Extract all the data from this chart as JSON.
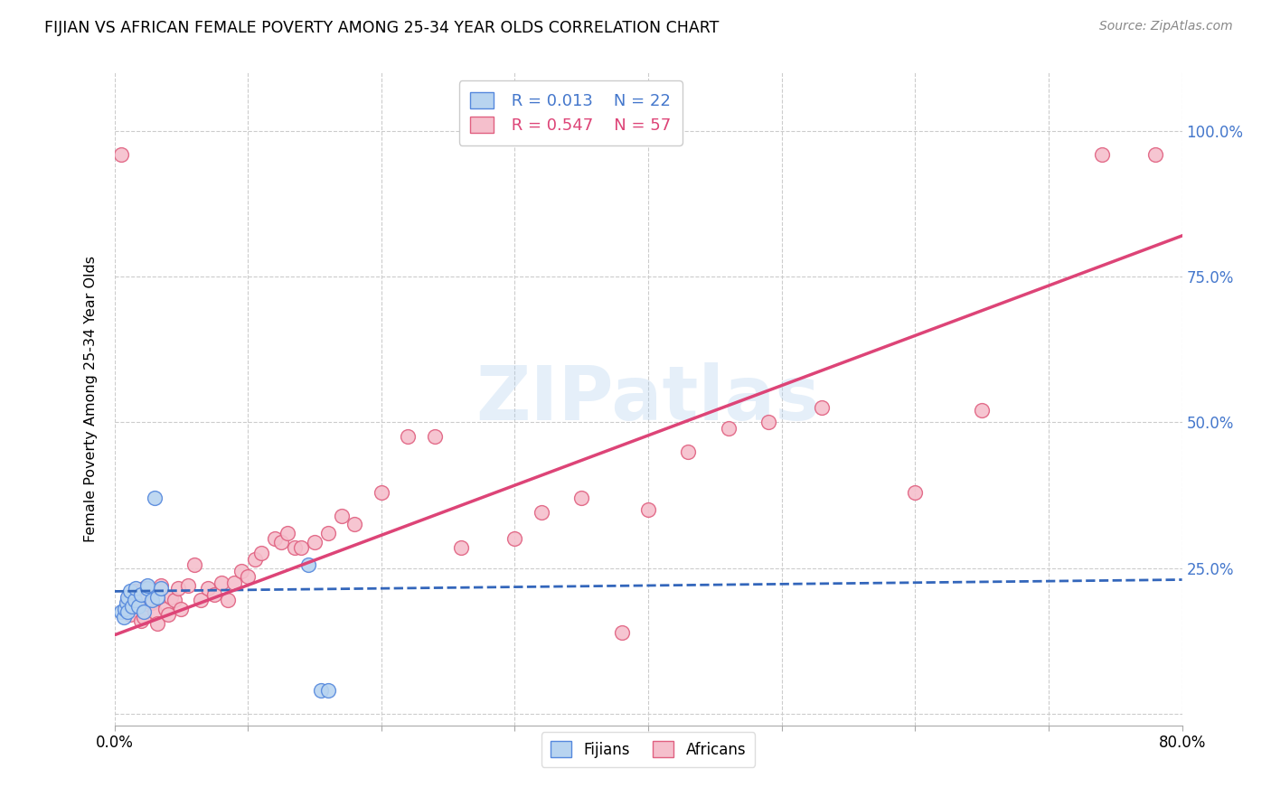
{
  "title": "FIJIAN VS AFRICAN FEMALE POVERTY AMONG 25-34 YEAR OLDS CORRELATION CHART",
  "source": "Source: ZipAtlas.com",
  "ylabel": "Female Poverty Among 25-34 Year Olds",
  "xlim": [
    0.0,
    0.8
  ],
  "ylim": [
    -0.02,
    1.1
  ],
  "xticks": [
    0.0,
    0.1,
    0.2,
    0.3,
    0.4,
    0.5,
    0.6,
    0.7,
    0.8
  ],
  "xticklabels": [
    "0.0%",
    "",
    "",
    "",
    "",
    "",
    "",
    "",
    "80.0%"
  ],
  "ytick_positions": [
    0.0,
    0.25,
    0.5,
    0.75,
    1.0
  ],
  "yticklabels_right": [
    "",
    "25.0%",
    "50.0%",
    "75.0%",
    "100.0%"
  ],
  "fijian_fill_color": "#b8d4f0",
  "african_fill_color": "#f5bfcc",
  "fijian_edge_color": "#5588dd",
  "african_edge_color": "#e06080",
  "fijian_line_color": "#3366bb",
  "african_line_color": "#dd4477",
  "watermark": "ZIPatlas",
  "legend_R_fijian": "R = 0.013",
  "legend_N_fijian": "N = 22",
  "legend_R_african": "R = 0.547",
  "legend_N_african": "N = 57",
  "fijian_x": [
    0.005,
    0.007,
    0.008,
    0.009,
    0.01,
    0.01,
    0.012,
    0.013,
    0.015,
    0.016,
    0.018,
    0.02,
    0.022,
    0.025,
    0.025,
    0.028,
    0.03,
    0.032,
    0.035,
    0.145,
    0.155,
    0.16
  ],
  "fijian_y": [
    0.175,
    0.165,
    0.18,
    0.19,
    0.2,
    0.175,
    0.21,
    0.185,
    0.195,
    0.215,
    0.185,
    0.205,
    0.175,
    0.215,
    0.22,
    0.195,
    0.37,
    0.2,
    0.215,
    0.255,
    0.04,
    0.04
  ],
  "african_x": [
    0.005,
    0.01,
    0.012,
    0.015,
    0.018,
    0.02,
    0.022,
    0.022,
    0.025,
    0.028,
    0.03,
    0.032,
    0.035,
    0.038,
    0.04,
    0.042,
    0.045,
    0.048,
    0.05,
    0.055,
    0.06,
    0.065,
    0.07,
    0.075,
    0.08,
    0.085,
    0.09,
    0.095,
    0.1,
    0.105,
    0.11,
    0.12,
    0.125,
    0.13,
    0.135,
    0.14,
    0.15,
    0.16,
    0.17,
    0.18,
    0.2,
    0.22,
    0.24,
    0.26,
    0.3,
    0.32,
    0.35,
    0.38,
    0.4,
    0.43,
    0.46,
    0.49,
    0.53,
    0.6,
    0.65,
    0.74,
    0.78
  ],
  "african_y": [
    0.96,
    0.195,
    0.17,
    0.21,
    0.185,
    0.16,
    0.165,
    0.215,
    0.2,
    0.19,
    0.175,
    0.155,
    0.22,
    0.18,
    0.17,
    0.2,
    0.195,
    0.215,
    0.18,
    0.22,
    0.255,
    0.195,
    0.215,
    0.205,
    0.225,
    0.195,
    0.225,
    0.245,
    0.235,
    0.265,
    0.275,
    0.3,
    0.295,
    0.31,
    0.285,
    0.285,
    0.295,
    0.31,
    0.34,
    0.325,
    0.38,
    0.475,
    0.475,
    0.285,
    0.3,
    0.345,
    0.37,
    0.14,
    0.35,
    0.45,
    0.49,
    0.5,
    0.525,
    0.38,
    0.52,
    0.96,
    0.96
  ]
}
